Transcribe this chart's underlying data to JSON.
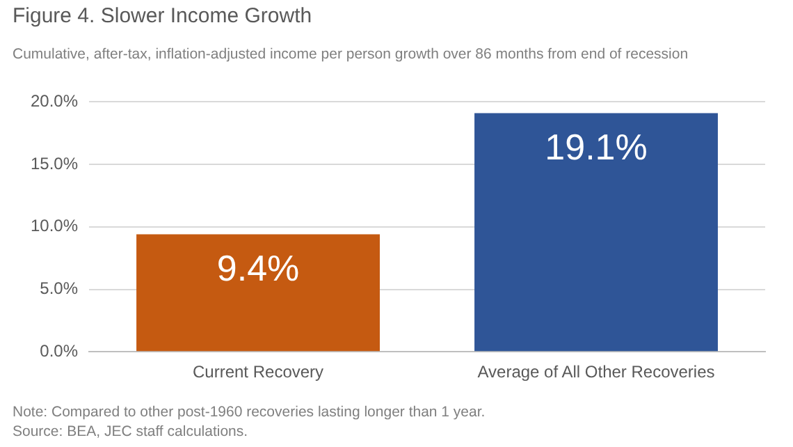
{
  "chart_data": {
    "type": "bar",
    "title": "Figure 4. Slower Income Growth",
    "subtitle": "Cumulative, after-tax, inflation-adjusted income per person growth over 86 months from end of recession",
    "categories": [
      "Current Recovery",
      "Average of All Other Recoveries"
    ],
    "values": [
      9.4,
      19.1
    ],
    "colors": [
      "#c55a11",
      "#2f5597"
    ],
    "value_labels": [
      "9.4%",
      "19.1%"
    ],
    "ylim": [
      0,
      20
    ],
    "yticks": [
      {
        "value": 0,
        "label": "0.0%"
      },
      {
        "value": 5,
        "label": "5.0%"
      },
      {
        "value": 10,
        "label": "10.0%"
      },
      {
        "value": 15,
        "label": "15.0%"
      },
      {
        "value": 20,
        "label": "20.0%"
      }
    ],
    "grid": "y",
    "legend": false,
    "annotations": [
      "Note: Compared to other post-1960 recoveries lasting longer than 1 year.",
      "Source: BEA, JEC staff calculations."
    ]
  }
}
